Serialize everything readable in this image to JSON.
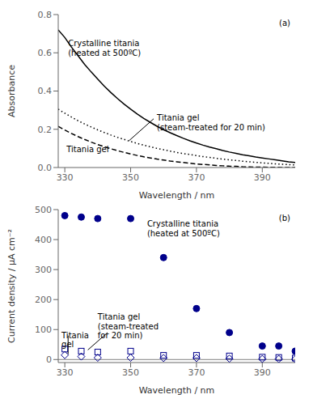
{
  "chart_data": [
    {
      "type": "line",
      "title": "(a)",
      "xlabel": "Wavelength / nm",
      "ylabel": "Absorbance",
      "xlim": [
        328,
        400
      ],
      "ylim": [
        0,
        0.8
      ],
      "xticks": [
        330,
        350,
        370,
        390
      ],
      "yticks": [
        {
          "value": 0,
          "label": "0.0"
        },
        0.2,
        0.4,
        0.6,
        0.8
      ],
      "grid": false,
      "x": [
        328,
        330,
        332,
        334,
        336,
        338,
        340,
        342,
        344,
        346,
        348,
        350,
        352,
        354,
        356,
        358,
        360,
        362,
        364,
        366,
        368,
        370,
        372,
        374,
        376,
        378,
        380,
        382,
        384,
        386,
        388,
        390,
        392,
        394,
        396,
        398,
        400
      ],
      "series": [
        {
          "color": "#000000",
          "line_style": "solid",
          "values": [
            0.72,
            0.68,
            0.63,
            0.585,
            0.54,
            0.5,
            0.462,
            0.425,
            0.392,
            0.361,
            0.332,
            0.305,
            0.28,
            0.257,
            0.236,
            0.216,
            0.198,
            0.182,
            0.167,
            0.153,
            0.14,
            0.128,
            0.117,
            0.107,
            0.098,
            0.089,
            0.081,
            0.074,
            0.067,
            0.061,
            0.055,
            0.05,
            0.045,
            0.04,
            0.035,
            0.03,
            0.026
          ]
        },
        {
          "color": "#000000",
          "line_style": "dotted",
          "values": [
            0.305,
            0.284,
            0.264,
            0.245,
            0.228,
            0.212,
            0.197,
            0.183,
            0.17,
            0.158,
            0.147,
            0.136,
            0.126,
            0.117,
            0.108,
            0.1,
            0.093,
            0.086,
            0.079,
            0.073,
            0.068,
            0.062,
            0.057,
            0.053,
            0.048,
            0.044,
            0.04,
            0.037,
            0.033,
            0.03,
            0.027,
            0.024,
            0.022,
            0.019,
            0.017,
            0.015,
            0.013
          ]
        },
        {
          "color": "#000000",
          "line_style": "dashed",
          "values": [
            0.215,
            0.196,
            0.178,
            0.162,
            0.147,
            0.133,
            0.12,
            0.109,
            0.098,
            0.088,
            0.079,
            0.071,
            0.063,
            0.056,
            0.05,
            0.044,
            0.039,
            0.034,
            0.03,
            0.026,
            0.022,
            0.019,
            0.016,
            0.014,
            0.011,
            0.009,
            0.007,
            0.006,
            0.004,
            0.003,
            0.002,
            0.002,
            0.001,
            0.001,
            0.0,
            0.0,
            0.0
          ]
        }
      ],
      "annotations": [
        {
          "text": "Crystalline titania\n(heated at 500ºC)",
          "x": 331,
          "y": 0.67
        },
        {
          "text": "Titania gel\n(steam-treated for 20 min)",
          "x": 358,
          "y": 0.28,
          "line": [
            [
              357,
              0.255
            ],
            [
              349.5,
              0.14
            ]
          ]
        },
        {
          "text": "Titania gel",
          "x": 330.5,
          "y": 0.115
        }
      ]
    },
    {
      "type": "scatter",
      "title": "(b)",
      "xlabel": "Wavelength / nm",
      "ylabel": "Current density / μA cm⁻²",
      "xlim": [
        328,
        400
      ],
      "ylim": [
        -10,
        500
      ],
      "xticks": [
        330,
        350,
        370,
        390
      ],
      "yticks": [
        0,
        100,
        200,
        300,
        400,
        500
      ],
      "grid": false,
      "hline": 0,
      "x": [
        330,
        335,
        340,
        350,
        360,
        370,
        380,
        390,
        395,
        400
      ],
      "series": [
        {
          "color": "#00008B",
          "marker": "circle",
          "values": [
            480,
            475,
            470,
            470,
            340,
            170,
            90,
            45,
            45,
            28
          ]
        },
        {
          "color": "#00008B",
          "marker": "open square",
          "values": [
            35,
            28,
            25,
            28,
            14,
            14,
            12,
            8,
            7,
            5
          ]
        },
        {
          "color": "#00008B",
          "marker": "open diamond",
          "values": [
            15,
            10,
            6,
            6,
            5,
            5,
            3,
            2,
            2,
            1
          ]
        }
      ],
      "annotations": [
        {
          "text": "Crystalline titania\n(heated at 500ºC)",
          "x": 355,
          "y": 465
        },
        {
          "text": "Titania gel\n(steam-treated\nfor 20 min)",
          "x": 340,
          "y": 155,
          "line": [
            [
              343,
              90
            ],
            [
              337,
              32
            ]
          ]
        },
        {
          "text": "Titania\ngel",
          "x": 329,
          "y": 95,
          "line": [
            [
              331,
              80
            ],
            [
              331,
              18
            ]
          ]
        }
      ]
    }
  ]
}
